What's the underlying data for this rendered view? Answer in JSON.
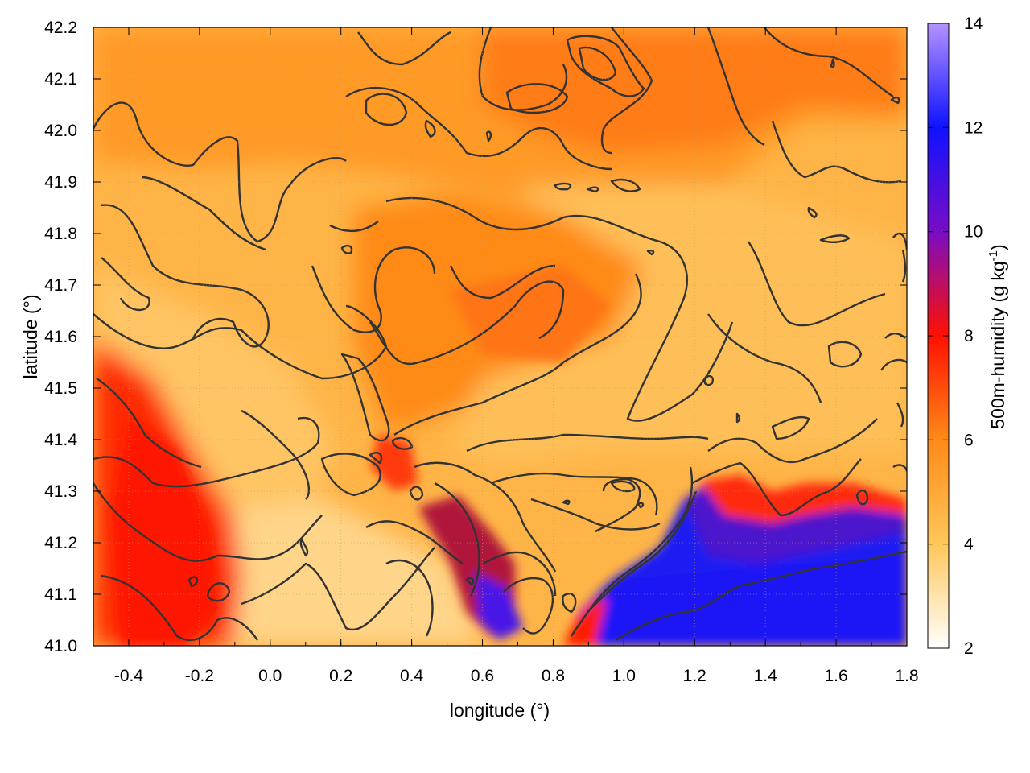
{
  "chart_data": {
    "type": "heatmap",
    "xlabel": "longitude (°)",
    "ylabel": "latitude (°)",
    "xlim": [
      -0.5,
      1.8
    ],
    "ylim": [
      41.0,
      42.2
    ],
    "x_ticks": [
      "-0.4",
      "-0.2",
      "0.0",
      "0.2",
      "0.4",
      "0.6",
      "0.8",
      "1.0",
      "1.2",
      "1.4",
      "1.6",
      "1.8"
    ],
    "y_ticks": [
      "41.0",
      "41.1",
      "41.2",
      "41.3",
      "41.4",
      "41.5",
      "41.6",
      "41.7",
      "41.8",
      "41.9",
      "42.0",
      "42.1",
      "42.2"
    ],
    "grid": true,
    "colorbar": {
      "label_main": "500m-humidity (g kg",
      "label_sup": "-1",
      "label_close": ")",
      "range": [
        2,
        14
      ],
      "ticks": [
        "2",
        "4",
        "6",
        "8",
        "10",
        "12",
        "14"
      ],
      "stops": [
        {
          "value": 2,
          "color": "#ffffff"
        },
        {
          "value": 4,
          "color": "#ffc75a"
        },
        {
          "value": 6,
          "color": "#ff8a18"
        },
        {
          "value": 8,
          "color": "#ff1000"
        },
        {
          "value": 10,
          "color": "#7a0cc6"
        },
        {
          "value": 12,
          "color": "#0f12ff"
        },
        {
          "value": 14,
          "color": "#b393ff"
        }
      ]
    },
    "field_regions": [
      {
        "name": "north-moist-band",
        "value": 5.6
      },
      {
        "name": "central-interior",
        "value": 4.2
      },
      {
        "name": "northeast-moist",
        "value": 5.9
      },
      {
        "name": "central-moist-tongue",
        "value": 5.8
      },
      {
        "name": "west-interior-dry",
        "value": 3.6
      },
      {
        "name": "southwest-moist",
        "value": 7.6
      },
      {
        "name": "south-central-dry",
        "value": 3.2
      },
      {
        "name": "ebro-delta-moist",
        "value": 9.5
      },
      {
        "name": "sea-southeast",
        "value": 11.8
      }
    ]
  }
}
